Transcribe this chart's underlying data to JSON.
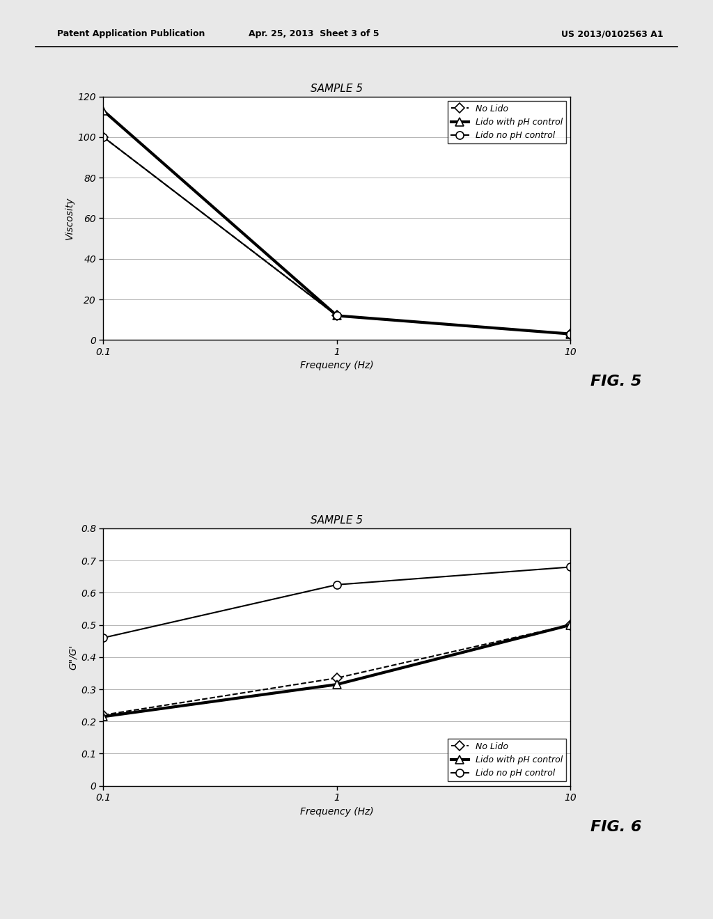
{
  "header_left": "Patent Application Publication",
  "header_center": "Apr. 25, 2013  Sheet 3 of 5",
  "header_right": "US 2013/0102563 A1",
  "fig5": {
    "title": "SAMPLE 5",
    "xlabel": "Frequency (Hz)",
    "ylabel": "Viscosity",
    "xlim": [
      0.1,
      10
    ],
    "ylim": [
      0,
      120
    ],
    "yticks": [
      0,
      20,
      40,
      60,
      80,
      100,
      120
    ],
    "xticks": [
      0.1,
      1,
      10
    ],
    "xticklabels": [
      "0.1",
      "1",
      "10"
    ],
    "series": [
      {
        "label": "No Lido",
        "x": [
          0.1,
          1,
          10
        ],
        "y": [
          100,
          12,
          3
        ],
        "linestyle": "--",
        "linewidth": 1.5,
        "marker": "D",
        "markersize": 7,
        "color": "#000000",
        "markerfacecolor": "white"
      },
      {
        "label": "Lido with pH control",
        "x": [
          0.1,
          1,
          10
        ],
        "y": [
          113,
          12,
          3
        ],
        "linestyle": "-",
        "linewidth": 3.0,
        "marker": "^",
        "markersize": 9,
        "color": "#000000",
        "markerfacecolor": "white"
      },
      {
        "label": "Lido no pH control",
        "x": [
          0.1,
          1,
          10
        ],
        "y": [
          100,
          12,
          3
        ],
        "linestyle": "-",
        "linewidth": 1.5,
        "marker": "o",
        "markersize": 8,
        "color": "#000000",
        "markerfacecolor": "white"
      }
    ],
    "legend_loc": "upper right",
    "fig_label": "FIG. 5"
  },
  "fig6": {
    "title": "SAMPLE 5",
    "xlabel": "Frequency (Hz)",
    "ylabel": "G\"/G'",
    "xlim": [
      0.1,
      10
    ],
    "ylim": [
      0,
      0.8
    ],
    "yticks": [
      0,
      0.1,
      0.2,
      0.3,
      0.4,
      0.5,
      0.6,
      0.7,
      0.8
    ],
    "xticks": [
      0.1,
      1,
      10
    ],
    "xticklabels": [
      "0.1",
      "1",
      "10"
    ],
    "series": [
      {
        "label": "No Lido",
        "x": [
          0.1,
          1,
          10
        ],
        "y": [
          0.22,
          0.335,
          0.5
        ],
        "linestyle": "--",
        "linewidth": 1.5,
        "marker": "D",
        "markersize": 7,
        "color": "#000000",
        "markerfacecolor": "white"
      },
      {
        "label": "Lido with pH control",
        "x": [
          0.1,
          1,
          10
        ],
        "y": [
          0.215,
          0.315,
          0.5
        ],
        "linestyle": "-",
        "linewidth": 3.0,
        "marker": "^",
        "markersize": 9,
        "color": "#000000",
        "markerfacecolor": "white"
      },
      {
        "label": "Lido no pH control",
        "x": [
          0.1,
          1,
          10
        ],
        "y": [
          0.46,
          0.625,
          0.68
        ],
        "linestyle": "-",
        "linewidth": 1.5,
        "marker": "o",
        "markersize": 8,
        "color": "#000000",
        "markerfacecolor": "white"
      }
    ],
    "legend_loc": "lower right",
    "fig_label": "FIG. 6"
  },
  "page_bg": "#e8e8e8",
  "chart_bg": "#ffffff",
  "font_family": "DejaVu Sans",
  "title_fontsize": 11,
  "axis_label_fontsize": 10,
  "tick_fontsize": 10,
  "legend_fontsize": 9,
  "header_fontsize": 9,
  "fig_label_fontsize": 16
}
